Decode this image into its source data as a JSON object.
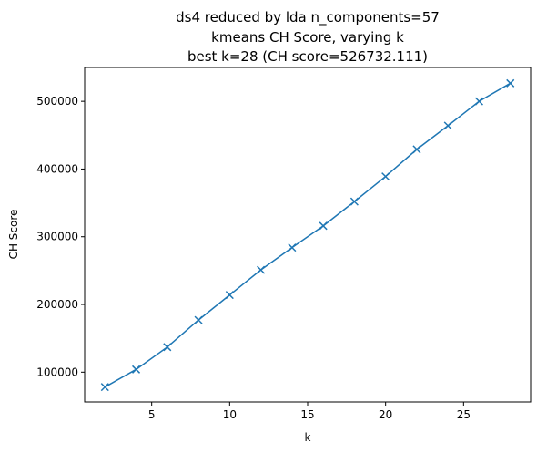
{
  "chart_data": {
    "type": "line",
    "title": [
      "ds4 reduced by lda n_components=57",
      "kmeans CH Score, varying k",
      "best k=28 (CH score=526732.111)"
    ],
    "xlabel": "k",
    "ylabel": "CH Score",
    "xlim": [
      0.7,
      29.3
    ],
    "ylim": [
      56000,
      550000
    ],
    "xticks": [
      5,
      10,
      15,
      20,
      25
    ],
    "yticks": [
      100000,
      200000,
      300000,
      400000,
      500000
    ],
    "grid": false,
    "marker": "x",
    "color": "#1f77b4",
    "series": [
      {
        "x": [
          2,
          4,
          6,
          8,
          10,
          12,
          14,
          16,
          18,
          20,
          22,
          24,
          26,
          28
        ],
        "values": [
          78000,
          104000,
          137000,
          177000,
          214000,
          251000,
          284000,
          316000,
          352000,
          389000,
          429000,
          464000,
          500000,
          526732.111
        ]
      }
    ]
  }
}
